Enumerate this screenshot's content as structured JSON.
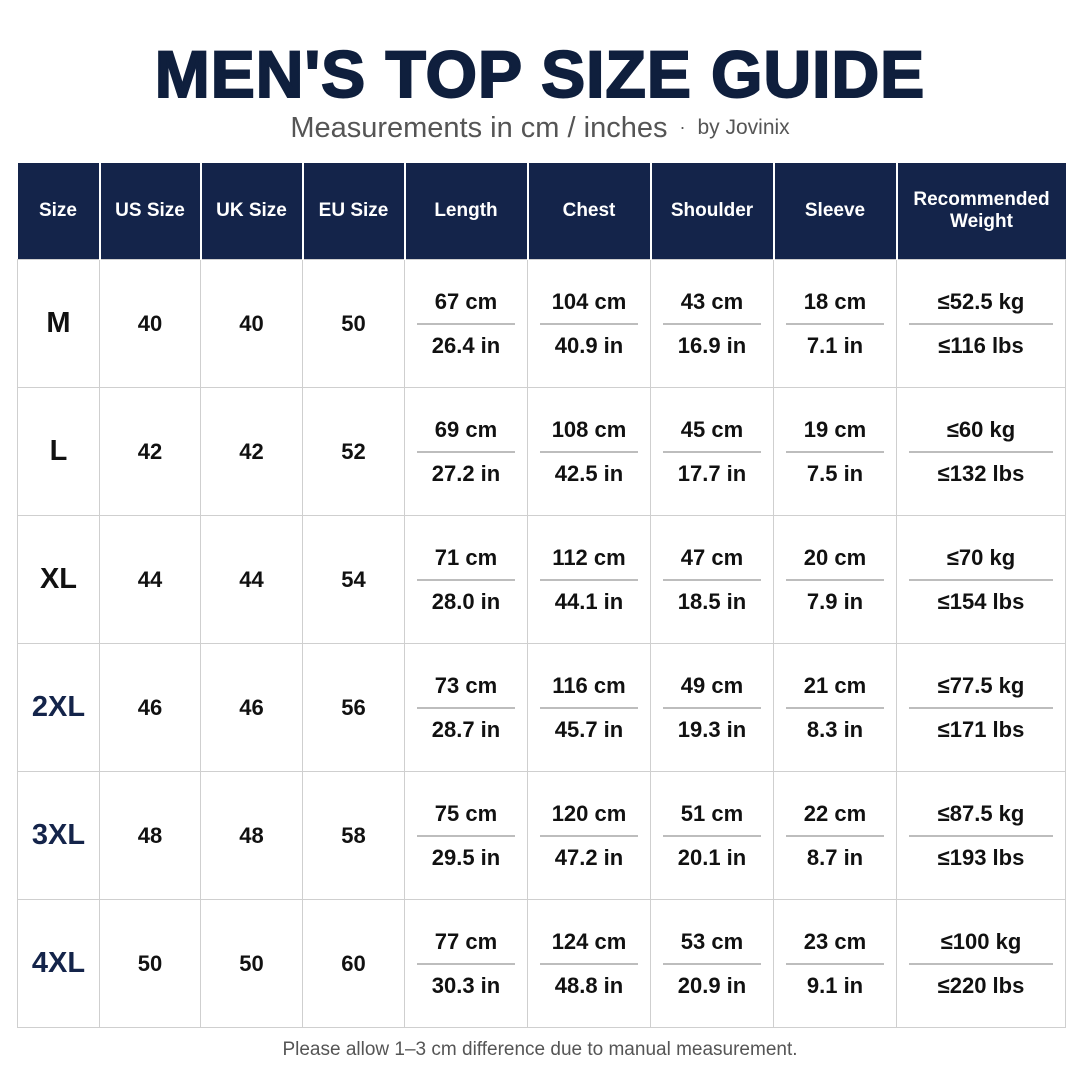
{
  "header": {
    "title": "MEN'S TOP SIZE GUIDE",
    "subtitle": "Measurements in cm / inches",
    "separator": "·",
    "brand": "by Jovinix"
  },
  "table": {
    "columns": [
      "Size",
      "US Size",
      "UK Size",
      "EU Size",
      "Length",
      "Chest",
      "Shoulder",
      "Sleeve",
      "Recommended Weight"
    ],
    "rows": [
      [
        "M",
        "40",
        "40",
        "50",
        [
          "67 cm",
          "26.4 in"
        ],
        [
          "104 cm",
          "40.9 in"
        ],
        [
          "43 cm",
          "16.9 in"
        ],
        [
          "18 cm",
          "7.1 in"
        ],
        [
          "≤52.5 kg",
          "≤116 lbs"
        ]
      ],
      [
        "L",
        "42",
        "42",
        "52",
        [
          "69 cm",
          "27.2 in"
        ],
        [
          "108 cm",
          "42.5 in"
        ],
        [
          "45 cm",
          "17.7 in"
        ],
        [
          "19 cm",
          "7.5 in"
        ],
        [
          "≤60 kg",
          "≤132 lbs"
        ]
      ],
      [
        "XL",
        "44",
        "44",
        "54",
        [
          "71 cm",
          "28.0 in"
        ],
        [
          "112 cm",
          "44.1 in"
        ],
        [
          "47 cm",
          "18.5 in"
        ],
        [
          "20 cm",
          "7.9 in"
        ],
        [
          "≤70 kg",
          "≤154 lbs"
        ]
      ],
      [
        "2XL",
        "46",
        "46",
        "56",
        [
          "73 cm",
          "28.7 in"
        ],
        [
          "116 cm",
          "45.7 in"
        ],
        [
          "49 cm",
          "19.3 in"
        ],
        [
          "21 cm",
          "8.3 in"
        ],
        [
          "≤77.5 kg",
          "≤171 lbs"
        ]
      ],
      [
        "3XL",
        "48",
        "48",
        "58",
        [
          "75 cm",
          "29.5 in"
        ],
        [
          "120 cm",
          "47.2 in"
        ],
        [
          "51 cm",
          "20.1 in"
        ],
        [
          "22 cm",
          "8.7 in"
        ],
        [
          "≤87.5 kg",
          "≤193 lbs"
        ]
      ],
      [
        "4XL",
        "50",
        "50",
        "60",
        [
          "77 cm",
          "30.3 in"
        ],
        [
          "124 cm",
          "48.8 in"
        ],
        [
          "53 cm",
          "20.9 in"
        ],
        [
          "23 cm",
          "9.1 in"
        ],
        [
          "≤100 kg",
          "≤220 lbs"
        ]
      ]
    ]
  },
  "footer": {
    "note": "Please allow 1–3 cm difference due to manual measurement."
  }
}
